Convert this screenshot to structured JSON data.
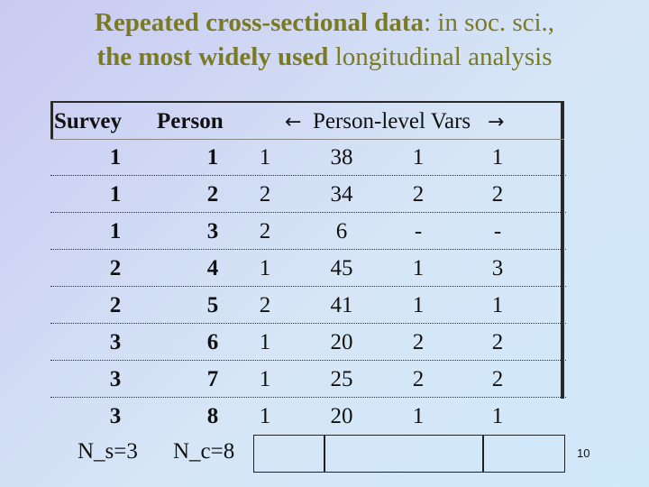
{
  "title": {
    "part1_bold": "Repeated cross-sectional data",
    "part1_rest": ": in soc. sci.,",
    "part2_bold": "the most widely used",
    "part2_rest": " longitudinal analysis"
  },
  "table": {
    "header_survey": "Survey",
    "header_person": "Person",
    "header_vars": "Person-level Vars",
    "arrow_left": "←",
    "arrow_right": "→",
    "rows": [
      [
        "1",
        "1",
        "1",
        "38",
        "1",
        "1"
      ],
      [
        "1",
        "2",
        "2",
        "34",
        "2",
        "2"
      ],
      [
        "1",
        "3",
        "2",
        "6",
        "-",
        "-"
      ],
      [
        "2",
        "4",
        "1",
        "45",
        "1",
        "3"
      ],
      [
        "2",
        "5",
        "2",
        "41",
        "1",
        "1"
      ],
      [
        "3",
        "6",
        "1",
        "20",
        "2",
        "2"
      ],
      [
        "3",
        "7",
        "1",
        "25",
        "2",
        "2"
      ],
      [
        "3",
        "8",
        "1",
        "20",
        "1",
        "1"
      ]
    ],
    "footer_survey": "N_s=3",
    "footer_person": "N_c=8"
  },
  "page_number": "10"
}
